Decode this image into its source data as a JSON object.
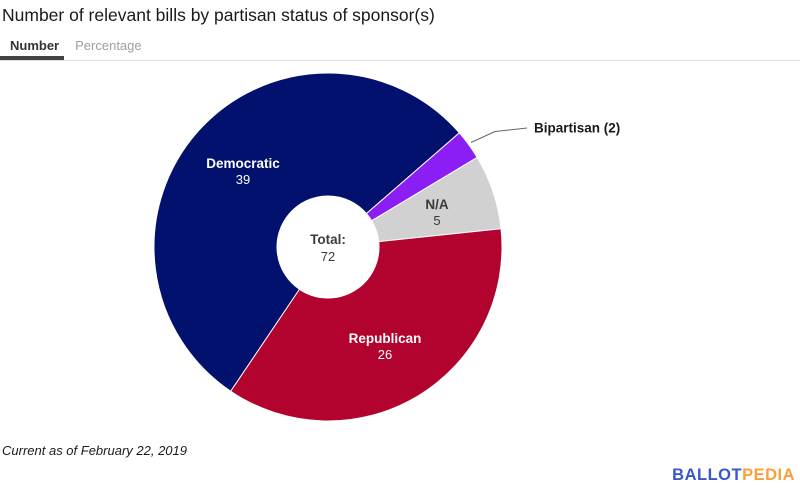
{
  "header": {
    "title": "Number of relevant bills by partisan status of sponsor(s)",
    "tabs": [
      {
        "label": "Number",
        "active": true
      },
      {
        "label": "Percentage",
        "active": false
      }
    ]
  },
  "chart_data": {
    "type": "pie",
    "donut": true,
    "title": "Number of relevant bills by partisan status of sponsor(s)",
    "total_label": "Total:",
    "total_value": 72,
    "start_angle_deg": 214,
    "legend_position": "none",
    "slices": [
      {
        "name": "Democratic",
        "value": 39,
        "color": "#02106e",
        "label_color": "#ffffff",
        "label_inside": true
      },
      {
        "name": "Bipartisan",
        "value": 2,
        "color": "#8a1ef4",
        "label": "Bipartisan (2)",
        "label_inside": false
      },
      {
        "name": "N/A",
        "value": 5,
        "color": "#d1d1d1",
        "label_color": "#3a3a3a",
        "label_inside": true
      },
      {
        "name": "Republican",
        "value": 26,
        "color": "#b1032e",
        "label_color": "#ffffff",
        "label_inside": true
      }
    ]
  },
  "footer": {
    "note": "Current as of February 22, 2019",
    "logo": {
      "part1": "BALLOT",
      "part2": "PEDIA"
    }
  },
  "colors": {
    "tab_active": "#333333",
    "tab_inactive": "#9e9e9e",
    "tab_underline": "#424242",
    "divider": "#e0e0e0",
    "callout_line": "#666666",
    "logo_blue": "#3b55cc",
    "logo_orange": "#f9a03c"
  }
}
